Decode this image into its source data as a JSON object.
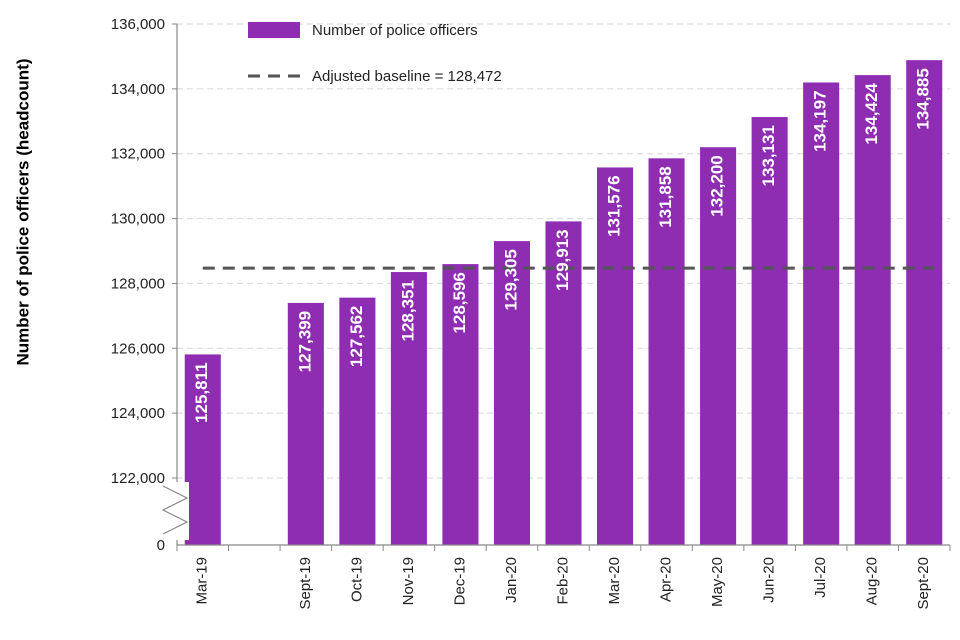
{
  "chart_data": {
    "type": "bar",
    "title": "",
    "xlabel": "",
    "ylabel": "Number of police officers (headcount)",
    "categories": [
      "Mar-19",
      "",
      "Sept-19",
      "Oct-19",
      "Nov-19",
      "Dec-19",
      "Jan-20",
      "Feb-20",
      "Mar-20",
      "Apr-20",
      "May-20",
      "Jun-20",
      "Jul-20",
      "Aug-20",
      "Sept-20"
    ],
    "series": [
      {
        "name": "Number of police officers",
        "values": [
          125811,
          null,
          127399,
          127562,
          128351,
          128596,
          129305,
          129913,
          131576,
          131858,
          132200,
          133131,
          134197,
          134424,
          134885
        ],
        "value_labels": [
          "125,811",
          "",
          "127,399",
          "127,562",
          "128,351",
          "128,596",
          "129,305",
          "129,913",
          "131,576",
          "131,858",
          "132,200",
          "133,131",
          "134,197",
          "134,424",
          "134,885"
        ]
      }
    ],
    "baseline": {
      "name": "Adjusted baseline = 128,472",
      "value": 128472
    },
    "ylim": [
      122000,
      136000
    ],
    "y_ticks": [
      122000,
      124000,
      126000,
      128000,
      130000,
      132000,
      134000,
      136000
    ],
    "y_tick_labels": [
      "122,000",
      "124,000",
      "126,000",
      "128,000",
      "130,000",
      "132,000",
      "134,000",
      "136,000"
    ],
    "y_zero_label": "0",
    "axis_break": true,
    "grid": true,
    "legend_position": "top-center",
    "colors": {
      "bar": "#8e2db2",
      "baseline": "#555555",
      "grid": "#d6d6d6",
      "axis": "#888888"
    }
  }
}
